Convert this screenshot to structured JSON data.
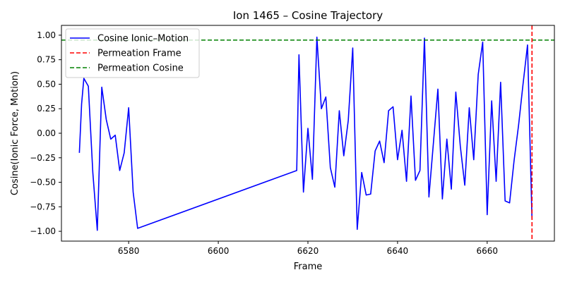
{
  "chart_data": {
    "type": "line",
    "title": "Ion 1465 – Cosine Trajectory",
    "xlabel": "Frame",
    "ylabel": "Cosine(Ionic Force, Motion)",
    "xlim": [
      6565,
      6675
    ],
    "ylim": [
      -1.1,
      1.1
    ],
    "xticks": [
      6580,
      6600,
      6620,
      6640,
      6660
    ],
    "yticks": [
      -1.0,
      -0.75,
      -0.5,
      -0.25,
      0.0,
      0.25,
      0.5,
      0.75,
      1.0
    ],
    "xtick_labels": [
      "6580",
      "6600",
      "6620",
      "6640",
      "6660"
    ],
    "ytick_labels": [
      "−1.00",
      "−0.75",
      "−0.50",
      "−0.25",
      "0.00",
      "0.25",
      "0.50",
      "0.75",
      "1.00"
    ],
    "grid": false,
    "legend_position": "top-left",
    "series": [
      {
        "name": "Cosine Ionic–Motion",
        "color": "#0000ff",
        "style": "solid",
        "x": [
          6569,
          6569.5,
          6570,
          6571,
          6572,
          6573,
          6574,
          6575,
          6576,
          6577,
          6578,
          6579,
          6580,
          6581,
          6582,
          6617.5,
          6618,
          6619,
          6620,
          6621,
          6622,
          6623,
          6624,
          6625,
          6626,
          6627,
          6628,
          6629,
          6630,
          6631,
          6632,
          6633,
          6634,
          6635,
          6636,
          6637,
          6638,
          6639,
          6640,
          6641,
          6642,
          6643,
          6644,
          6645,
          6646,
          6647,
          6648,
          6649,
          6650,
          6651,
          6652,
          6653,
          6654,
          6655,
          6656,
          6657,
          6658,
          6659,
          6660,
          6661,
          6662,
          6663,
          6664,
          6665,
          6666,
          6667,
          6668,
          6669,
          6670
        ],
        "y": [
          -0.2,
          0.3,
          0.56,
          0.48,
          -0.4,
          -0.99,
          0.47,
          0.14,
          -0.06,
          -0.02,
          -0.38,
          -0.2,
          0.26,
          -0.6,
          -0.97,
          -0.38,
          0.8,
          -0.6,
          0.05,
          -0.47,
          0.98,
          0.25,
          0.37,
          -0.35,
          -0.55,
          0.23,
          -0.23,
          0.13,
          0.87,
          -0.98,
          -0.4,
          -0.63,
          -0.62,
          -0.18,
          -0.08,
          -0.3,
          0.23,
          0.27,
          -0.27,
          0.03,
          -0.49,
          0.38,
          -0.48,
          -0.38,
          0.97,
          -0.65,
          -0.1,
          0.45,
          -0.67,
          -0.06,
          -0.57,
          0.42,
          -0.13,
          -0.53,
          0.26,
          -0.27,
          0.6,
          0.93,
          -0.83,
          0.33,
          -0.49,
          0.52,
          -0.69,
          -0.71,
          -0.28,
          0.08,
          0.5,
          0.9,
          -0.88
        ]
      },
      {
        "name": "Permeation Frame",
        "color": "#ff0000",
        "style": "dashed",
        "orientation": "vertical",
        "x": 6670
      },
      {
        "name": "Permeation Cosine",
        "color": "#008000",
        "style": "dashed",
        "orientation": "horizontal",
        "y": 0.95
      }
    ]
  }
}
